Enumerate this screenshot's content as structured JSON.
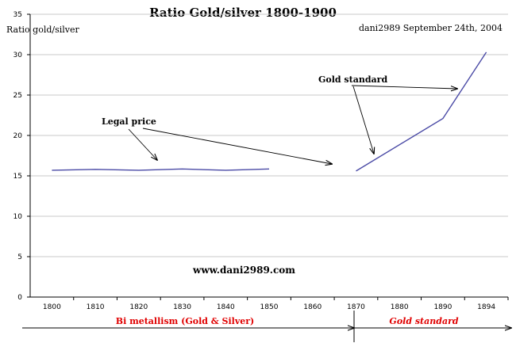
{
  "chart_data": {
    "type": "line",
    "title": "Ratio Gold/silver 1800-1900",
    "ylabel": "Ratio gold/silver",
    "author_note": "dani2989  September 24th,  2004",
    "website": "www.dani2989.com",
    "categories": [
      "1800",
      "1810",
      "1820",
      "1830",
      "1840",
      "1850",
      "1860",
      "1870",
      "1880",
      "1890",
      "1894"
    ],
    "ylim": [
      0,
      35
    ],
    "yticks": [
      0,
      5,
      10,
      15,
      20,
      25,
      30,
      35
    ],
    "grid": true,
    "series": [
      {
        "segment": "bimetallism",
        "color": "#4b4ba6",
        "points": [
          [
            "1800",
            15.7
          ],
          [
            "1810",
            15.8
          ],
          [
            "1820",
            15.7
          ],
          [
            "1830",
            15.85
          ],
          [
            "1840",
            15.7
          ],
          [
            "1850",
            15.85
          ]
        ]
      },
      {
        "segment": "gold_standard",
        "color": "#4b4ba6",
        "points": [
          [
            "1870",
            15.6
          ],
          [
            "1890",
            22.1
          ],
          [
            "1894",
            30.3
          ]
        ]
      }
    ],
    "annotations": {
      "legal_price": "Legal price",
      "gold_standard": "Gold standard"
    },
    "periods": {
      "bimetallism": "Bi metallism (Gold & Silver)",
      "gold_standard": "Gold standard"
    }
  }
}
